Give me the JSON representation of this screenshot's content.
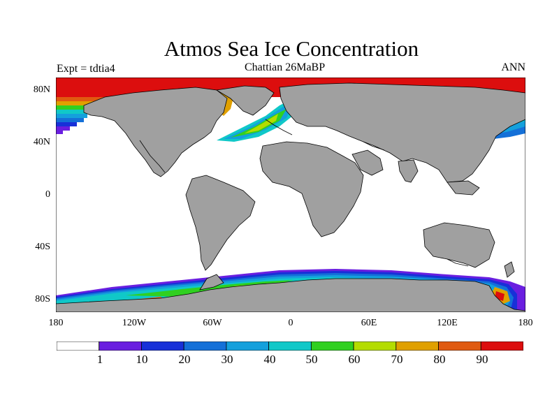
{
  "header": {
    "title": "Atmos Sea Ice Concentration",
    "left_label": "Expt = tdtia4",
    "center_label": "Chattian  26MaBP",
    "right_label": "ANN"
  },
  "axes": {
    "y_ticks": [
      "80N",
      "40N",
      "0",
      "40S",
      "80S"
    ],
    "x_ticks": [
      "180",
      "120W",
      "60W",
      "0",
      "60E",
      "120E",
      "180"
    ]
  },
  "colors": {
    "land": "#a0a0a0",
    "ocean_ice_free": "#ffffff",
    "coast": "#000000"
  },
  "colorbar": {
    "labels": [
      "1",
      "10",
      "20",
      "30",
      "40",
      "50",
      "60",
      "70",
      "80",
      "90"
    ],
    "bins": [
      {
        "color": "#ffffff"
      },
      {
        "color": "#6a1ee0"
      },
      {
        "color": "#1830d8"
      },
      {
        "color": "#1470d8"
      },
      {
        "color": "#14a0dc"
      },
      {
        "color": "#10c8c8"
      },
      {
        "color": "#30d020"
      },
      {
        "color": "#b4dc00"
      },
      {
        "color": "#e0a000"
      },
      {
        "color": "#e05a10"
      },
      {
        "color": "#dc0e0e"
      }
    ]
  }
}
